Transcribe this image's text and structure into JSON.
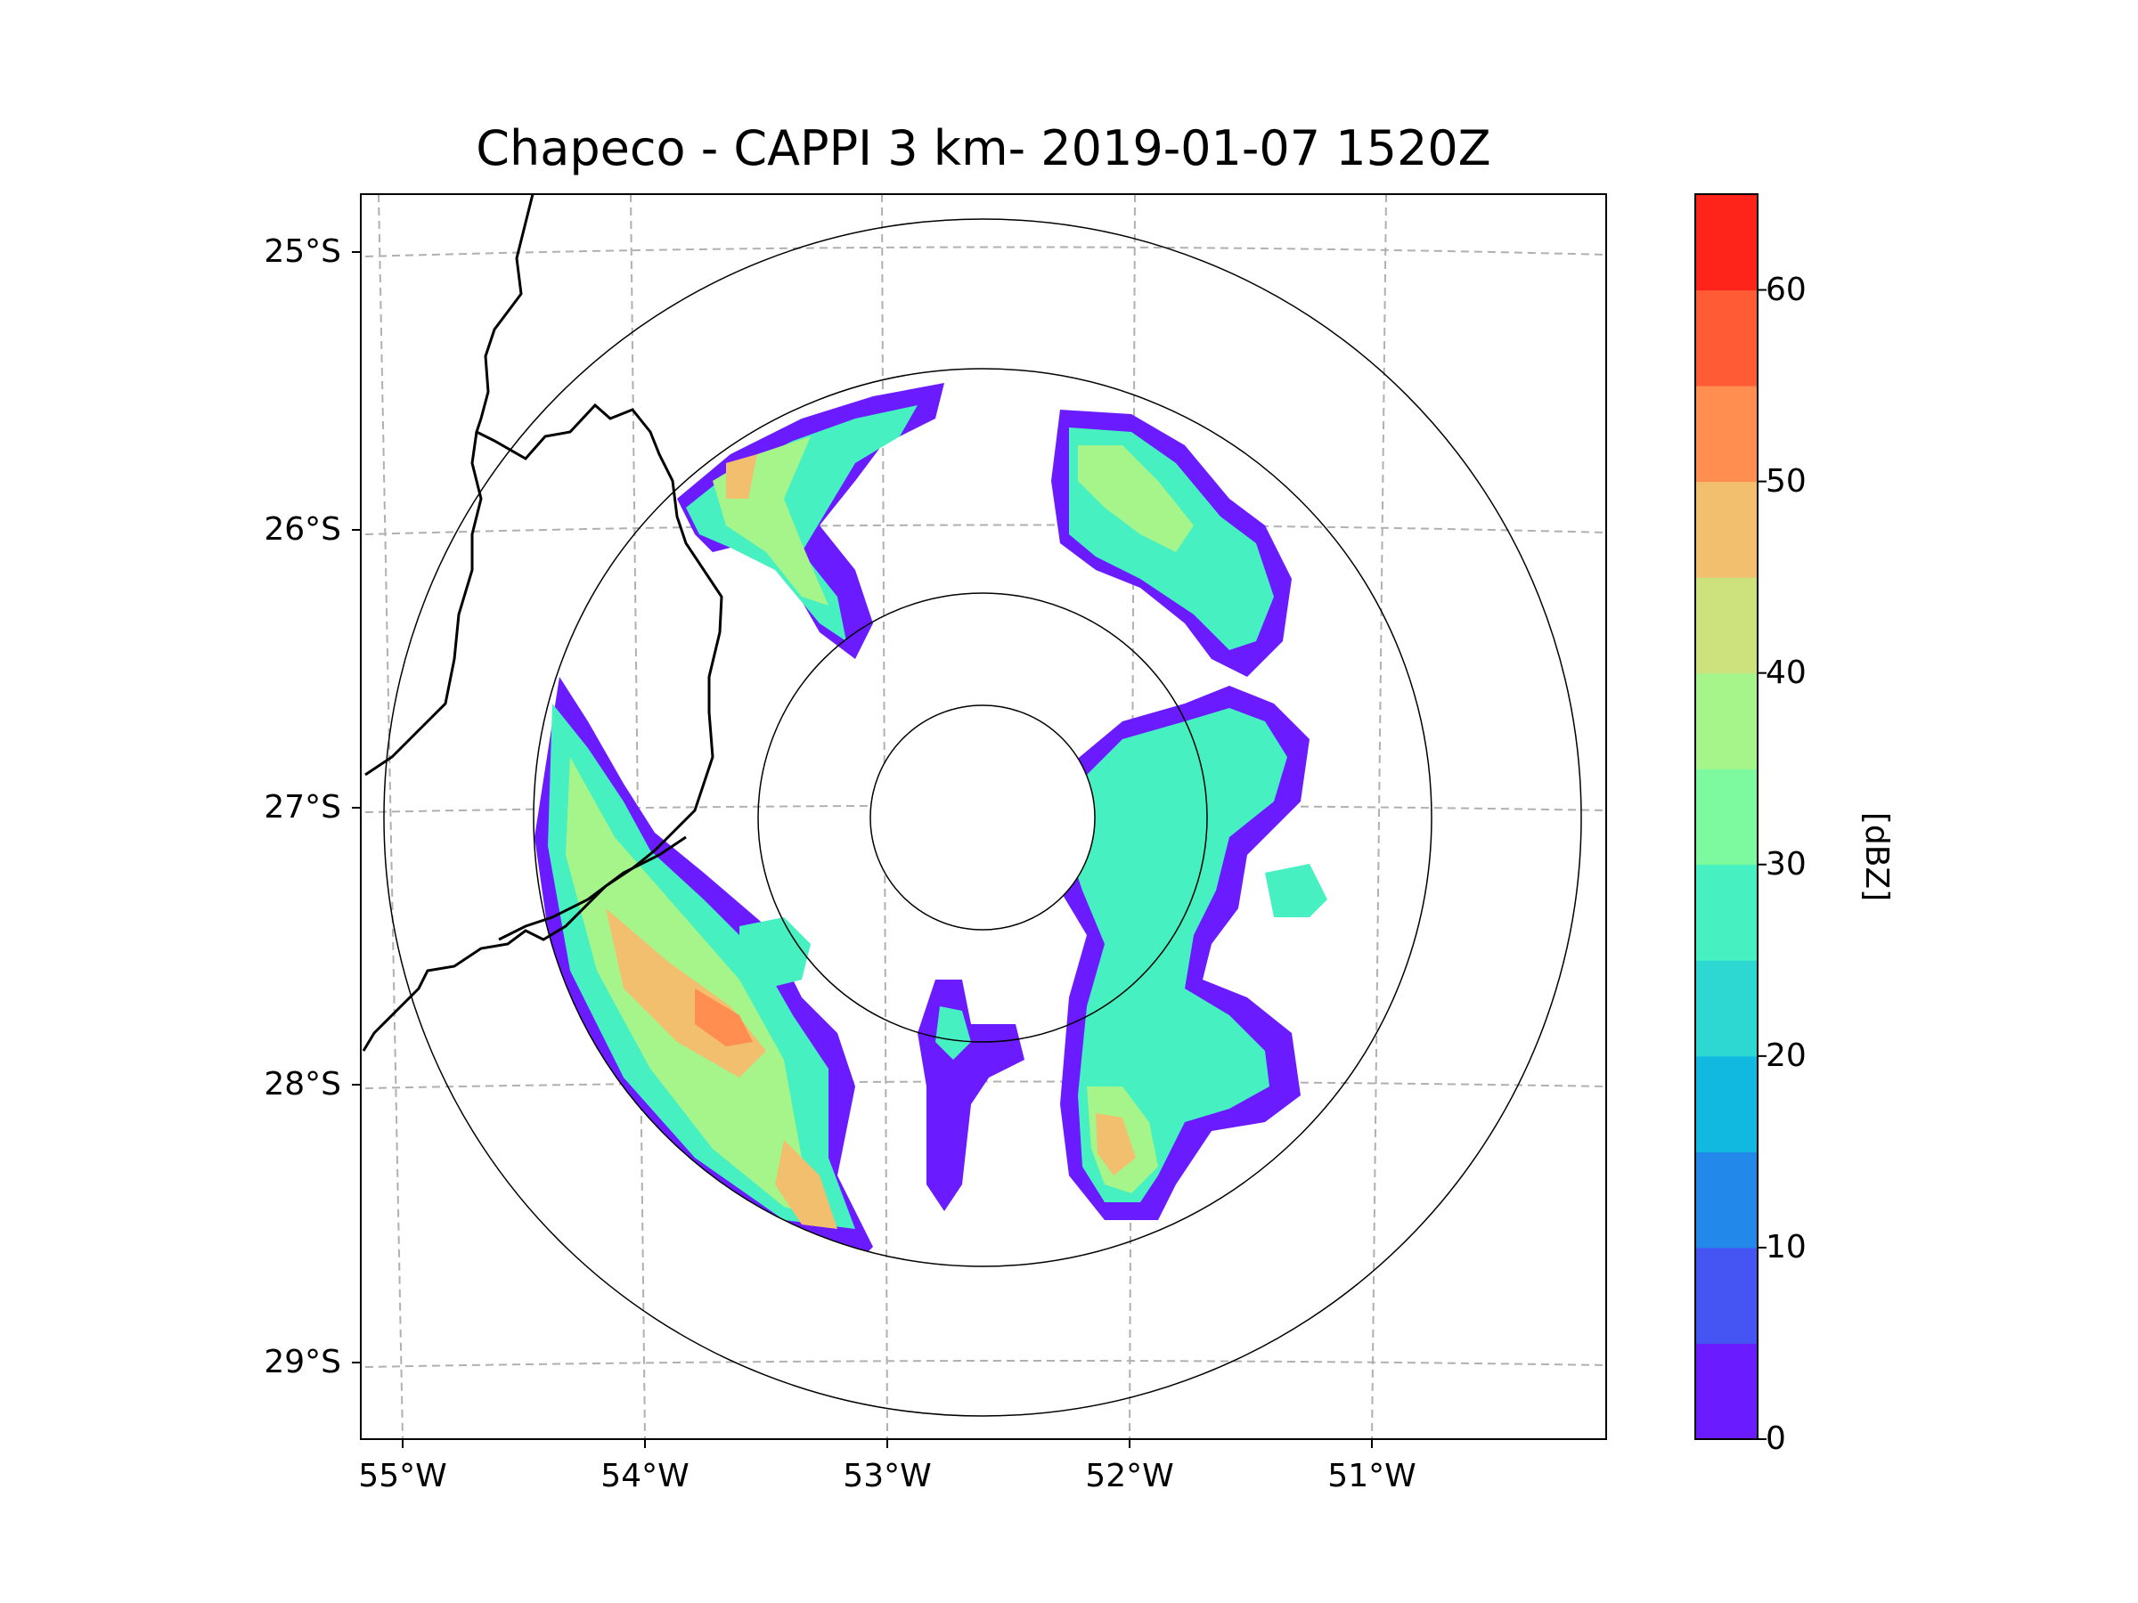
{
  "title": "Chapeco - CAPPI 3 km- 2019-01-07 1520Z",
  "map": {
    "radar_site": "Chapeco",
    "product": "CAPPI 3 km",
    "datetime": "2019-01-07 1520Z",
    "lat_labels": [
      "25°S",
      "26°S",
      "27°S",
      "28°S",
      "29°S"
    ],
    "lon_labels": [
      "55°W",
      "54°W",
      "53°W",
      "52°W",
      "51°W"
    ]
  },
  "colorbar": {
    "unit": "[dBZ]",
    "range": [
      0,
      65
    ],
    "step": 5,
    "tick_values": [
      0,
      10,
      20,
      30,
      40,
      50,
      60
    ],
    "tick_labels": [
      "0",
      "10",
      "20",
      "30",
      "40",
      "50",
      "60"
    ],
    "colors": [
      "#6a1bff",
      "#4455f4",
      "#2288ea",
      "#11b8e0",
      "#2dd8d2",
      "#46f0c0",
      "#7dfaa0",
      "#a6f58a",
      "#cde17c",
      "#f2bf6e",
      "#ff8e50",
      "#ff5b34",
      "#ff2419"
    ]
  }
}
